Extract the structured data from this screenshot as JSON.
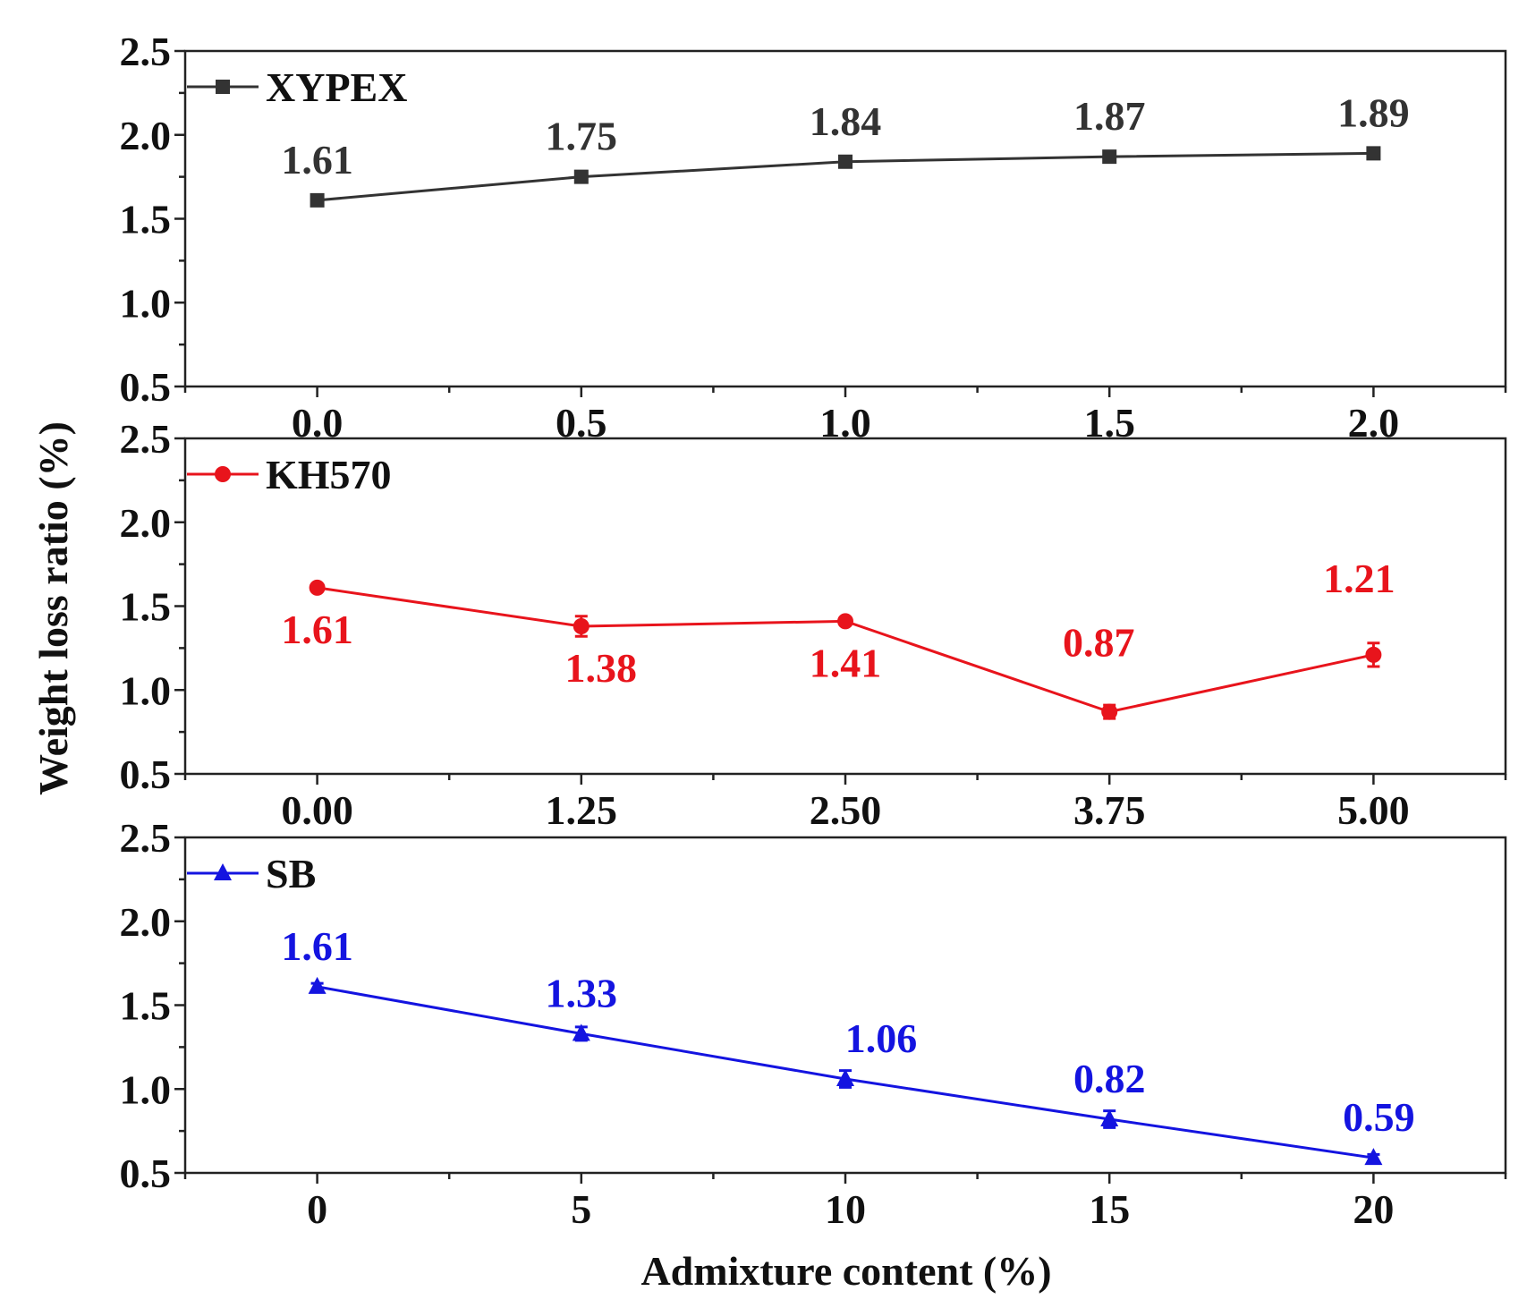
{
  "chart_data": [
    {
      "type": "line",
      "series_name": "XYPEX",
      "color": "#333333",
      "marker": "square",
      "x": [
        0.0,
        0.5,
        1.0,
        1.5,
        2.0
      ],
      "values": [
        1.61,
        1.75,
        1.84,
        1.87,
        1.89
      ],
      "errors": [
        0.02,
        0.03,
        0.02,
        0.02,
        0.02
      ],
      "data_labels": [
        "1.61",
        "1.75",
        "1.84",
        "1.87",
        "1.89"
      ],
      "label_position": "above",
      "xticks": [
        "0.0",
        "0.5",
        "1.0",
        "1.5",
        "2.0"
      ],
      "xlim": [
        -0.25,
        2.25
      ],
      "ylim": [
        0.5,
        2.5
      ],
      "yticks": [
        "0.5",
        "1.0",
        "1.5",
        "2.0",
        "2.5"
      ],
      "legend": "top-left"
    },
    {
      "type": "line",
      "series_name": "KH570",
      "color": "#e8141c",
      "marker": "circle",
      "x": [
        0.0,
        1.25,
        2.5,
        3.75,
        5.0
      ],
      "values": [
        1.61,
        1.38,
        1.41,
        0.87,
        1.21
      ],
      "errors": [
        0.02,
        0.06,
        0.02,
        0.04,
        0.07
      ],
      "data_labels": [
        "1.61",
        "1.38",
        "1.41",
        "0.87",
        "1.21"
      ],
      "label_position": "mixed",
      "xticks": [
        "0.00",
        "1.25",
        "2.50",
        "3.75",
        "5.00"
      ],
      "xlim": [
        -0.625,
        5.625
      ],
      "ylim": [
        0.5,
        2.5
      ],
      "yticks": [
        "0.5",
        "1.0",
        "1.5",
        "2.0",
        "2.5"
      ],
      "legend": "top-left"
    },
    {
      "type": "line",
      "series_name": "SB",
      "color": "#1414e0",
      "marker": "triangle",
      "x": [
        0,
        5,
        10,
        15,
        20
      ],
      "values": [
        1.61,
        1.33,
        1.06,
        0.82,
        0.59
      ],
      "errors": [
        0.02,
        0.04,
        0.05,
        0.05,
        0.02
      ],
      "data_labels": [
        "1.61",
        "1.33",
        "1.06",
        "0.82",
        "0.59"
      ],
      "label_position": "above",
      "xticks": [
        "0",
        "5",
        "10",
        "15",
        "20"
      ],
      "xlim": [
        -2.5,
        22.5
      ],
      "ylim": [
        0.5,
        2.5
      ],
      "yticks": [
        "0.5",
        "1.0",
        "1.5",
        "2.0",
        "2.5"
      ],
      "legend": "top-left"
    }
  ],
  "ylabel": "Weight loss ratio (%)",
  "xlabel": "Admixture content (%)"
}
